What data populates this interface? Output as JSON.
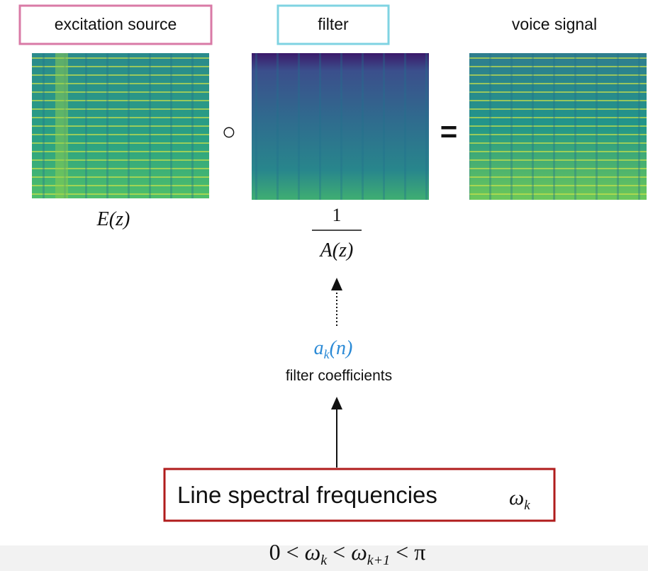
{
  "panels": [
    {
      "label": "excitation source"
    },
    {
      "label": "filter"
    },
    {
      "label": "voice signal"
    }
  ],
  "operators": [
    "○",
    "="
  ],
  "excitation_expr": "E(z)",
  "filter_expr": {
    "numerator": "1",
    "denominator": "A(z)"
  },
  "coefficients": {
    "symbol": {
      "base": "a",
      "sub": "k",
      "rest": "(n)"
    },
    "label": "filter coefficients"
  },
  "lsf": {
    "label": "Line spectral frequencies",
    "symbol": {
      "base": "ω",
      "sub": "k"
    }
  },
  "constraint": [
    "0 <",
    "ω",
    "k",
    "<",
    "ω",
    "k+1",
    "< π"
  ]
}
